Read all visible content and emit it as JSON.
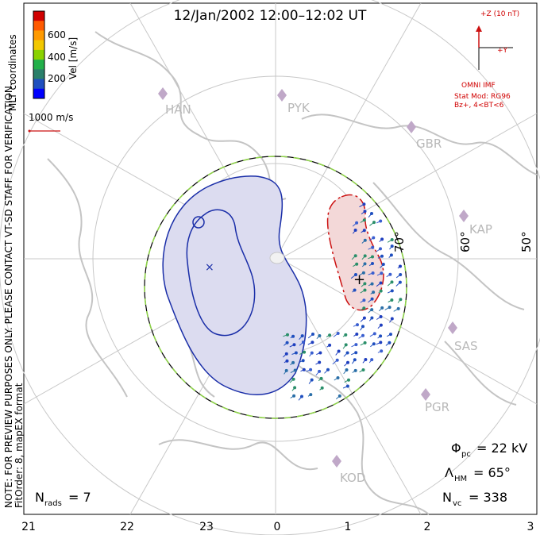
{
  "title": "12/Jan/2002  12:00–12:02  UT",
  "coords_label": "MLT coordinates",
  "legend": {
    "vel_label": "Vel [m/s]",
    "ticks": [
      "600",
      "400",
      "200"
    ],
    "colors": [
      "#d00000",
      "#ff5a00",
      "#ff9a00",
      "#f2c800",
      "#8ad200",
      "#22b04a",
      "#2a7f6a",
      "#1f4fbf",
      "#0000ff"
    ]
  },
  "vector_scale_label": "1000 m/s",
  "imf": {
    "z_label": "+Z (10 nT)",
    "y_label": "+Y",
    "source": "OMNI IMF",
    "model_line1": "Stat Mod: RG96",
    "model_line2": "Bz+, 4<BT<6"
  },
  "notice": {
    "line1": "NOTE: FOR PREVIEW PURPOSES ONLY. PLEASE CONTACT VT-SD STAFF FOR VERIFICATION.",
    "line2": "FitOrder: 8, mapEX format"
  },
  "stations": [
    "HAN",
    "PYK",
    "GBR",
    "KAP",
    "SAS",
    "PGR",
    "KOD"
  ],
  "latitude_labels": [
    "70°",
    "60°",
    "50°"
  ],
  "mlt_labels": [
    "21",
    "22",
    "23",
    "0",
    "1",
    "2",
    "3"
  ],
  "stats": {
    "phi_pc_symbol": "Φ",
    "phi_pc_sub": "pc",
    "phi_pc_value": "= 22 kV",
    "lambda_hm_symbol": "Λ",
    "lambda_hm_sub": "HM",
    "lambda_hm_value": "= 65°",
    "n_vc_symbol": "N",
    "n_vc_sub": "vc",
    "n_vc_value": "= 338",
    "n_rads_symbol": "N",
    "n_rads_sub": "rads",
    "n_rads_value": "= 7"
  },
  "colors": {
    "negative_cell": "#1a2ea8",
    "positive_cell": "#cc1111",
    "hmb": "#8fd34a",
    "grid": "#c8c8c8",
    "land": "#c4c4c4"
  }
}
